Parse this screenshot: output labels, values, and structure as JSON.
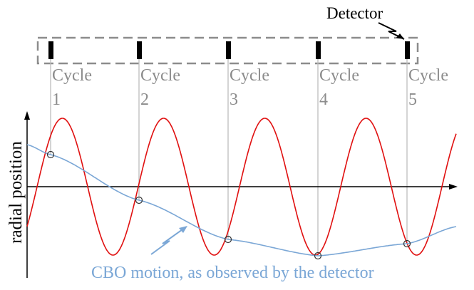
{
  "detector_label": "Detector",
  "y_axis_label": "radial position",
  "cbo_label": "CBO motion, as observed by the detector",
  "cycles": [
    {
      "word": "Cycle",
      "number": "1"
    },
    {
      "word": "Cycle",
      "number": "2"
    },
    {
      "word": "Cycle",
      "number": "3"
    },
    {
      "word": "Cycle",
      "number": "4"
    },
    {
      "word": "Cycle",
      "number": "5"
    }
  ],
  "colors": {
    "oscillation": "#e01010",
    "cbo": "#7ba7d6",
    "gray_lines": "#8c8c8c",
    "detector_marks": "#000000"
  }
}
